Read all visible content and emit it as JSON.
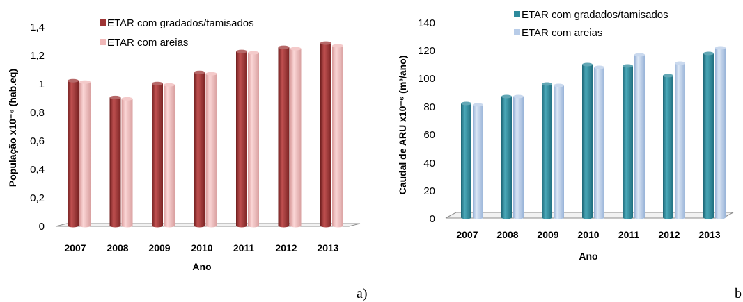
{
  "chart_data": [
    {
      "type": "bar",
      "panel_label": "a)",
      "categories": [
        "2007",
        "2008",
        "2009",
        "2010",
        "2011",
        "2012",
        "2013"
      ],
      "xlabel": "Ano",
      "ylabel": "População x10⁻⁶ (hab.eq)",
      "ylim": [
        0,
        1.4
      ],
      "yticks": [
        "0",
        "0,2",
        "0,4",
        "0,6",
        "0,8",
        "1",
        "1,2",
        "1,4"
      ],
      "grid": false,
      "legend_position": "top",
      "series": [
        {
          "name": "ETAR com gradados/tamisados",
          "color": "#9e3535",
          "values": [
            1.04,
            0.92,
            1.02,
            1.1,
            1.25,
            1.28,
            1.31
          ]
        },
        {
          "name": "ETAR com areias",
          "color": "#f0b8b8",
          "values": [
            1.03,
            0.91,
            1.01,
            1.09,
            1.24,
            1.27,
            1.29
          ]
        }
      ]
    },
    {
      "type": "bar",
      "panel_label": "b",
      "categories": [
        "2007",
        "2008",
        "2009",
        "2010",
        "2011",
        "2012",
        "2013"
      ],
      "xlabel": "Ano",
      "ylabel": "Caudal de ARU x10⁻⁶ (m³/ano)",
      "ylim": [
        0,
        140
      ],
      "yticks": [
        "0",
        "20",
        "40",
        "60",
        "80",
        "100",
        "120",
        "140"
      ],
      "grid": false,
      "legend_position": "top",
      "series": [
        {
          "name": "ETAR com gradados/tamisados",
          "color": "#2e8a9c",
          "values": [
            82,
            87,
            96,
            110,
            109,
            102,
            118
          ]
        },
        {
          "name": "ETAR com areias",
          "color": "#b8cce8",
          "values": [
            81,
            87,
            95,
            108,
            117,
            111,
            122
          ]
        }
      ]
    }
  ]
}
